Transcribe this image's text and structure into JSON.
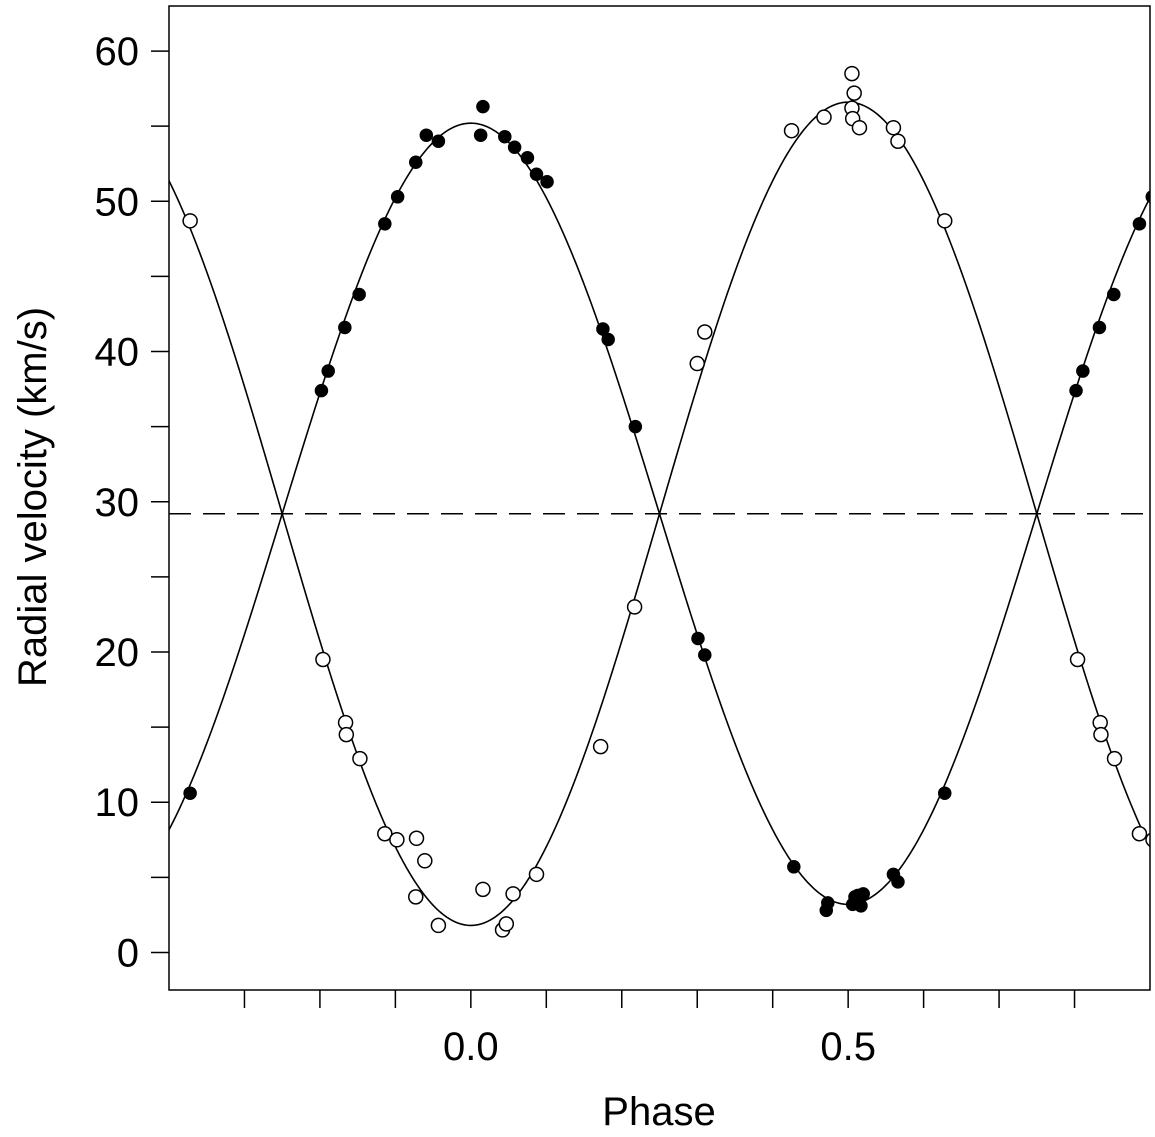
{
  "chart_data": {
    "type": "scatter",
    "title": "",
    "xlabel": "Phase",
    "ylabel": "Radial velocity (km/s)",
    "xlim": [
      -0.4,
      0.9
    ],
    "ylim": [
      -2.5,
      63
    ],
    "x_ticks": [
      -0.3,
      -0.2,
      -0.1,
      0.0,
      0.1,
      0.2,
      0.3,
      0.4,
      0.5,
      0.6,
      0.7,
      0.8
    ],
    "x_tick_labels": [
      {
        "value": 0.0,
        "label": "0.0"
      },
      {
        "value": 0.5,
        "label": "0.5"
      }
    ],
    "y_ticks": [
      0,
      5,
      10,
      15,
      20,
      25,
      30,
      35,
      40,
      45,
      50,
      55,
      60
    ],
    "y_tick_labels": [
      {
        "value": 0,
        "label": "0"
      },
      {
        "value": 10,
        "label": "10"
      },
      {
        "value": 20,
        "label": "20"
      },
      {
        "value": 30,
        "label": "30"
      },
      {
        "value": 40,
        "label": "40"
      },
      {
        "value": 50,
        "label": "50"
      },
      {
        "value": 60,
        "label": "60"
      }
    ],
    "grid": false,
    "legend": "none",
    "systemic_velocity": 29.2,
    "series": [
      {
        "marker": "filled-circle",
        "color": "#000000",
        "curve": {
          "mean": 29.2,
          "amplitude": 26.0,
          "peak_phase": 0.0
        },
        "x": [
          -0.372,
          -0.198,
          -0.189,
          -0.167,
          -0.148,
          -0.114,
          -0.097,
          -0.073,
          -0.059,
          -0.043,
          0.013,
          0.016,
          0.045,
          0.058,
          0.075,
          0.087,
          0.101,
          0.175,
          0.182,
          0.218,
          0.301,
          0.31,
          0.428,
          0.471,
          0.473,
          0.506,
          0.509,
          0.513,
          0.517,
          0.52,
          0.56,
          0.566,
          0.628,
          0.802,
          0.811,
          0.833,
          0.852,
          0.886,
          0.903
        ],
        "y": [
          10.6,
          37.4,
          38.7,
          41.6,
          43.8,
          48.5,
          50.3,
          52.6,
          54.4,
          54.0,
          54.4,
          56.3,
          54.3,
          53.6,
          52.9,
          51.8,
          51.3,
          41.5,
          40.8,
          35.0,
          20.9,
          19.8,
          5.7,
          2.8,
          3.3,
          3.2,
          3.7,
          3.8,
          3.1,
          3.9,
          5.2,
          4.7,
          10.6,
          37.4,
          38.7,
          41.6,
          43.8,
          48.5,
          50.3
        ]
      },
      {
        "marker": "open-circle",
        "color": "#000000",
        "curve": {
          "mean": 29.2,
          "amplitude": 27.4,
          "peak_phase": 0.5
        },
        "x": [
          -0.372,
          -0.196,
          -0.166,
          -0.165,
          -0.147,
          -0.114,
          -0.098,
          -0.072,
          -0.073,
          -0.061,
          -0.043,
          0.016,
          0.042,
          0.047,
          0.056,
          0.087,
          0.172,
          0.217,
          0.3,
          0.31,
          0.425,
          0.468,
          0.505,
          0.506,
          0.508,
          0.505,
          0.515,
          0.56,
          0.566,
          0.628,
          0.804,
          0.834,
          0.835,
          0.853,
          0.886,
          0.904
        ],
        "y": [
          48.7,
          19.5,
          15.3,
          14.5,
          12.9,
          7.9,
          7.5,
          7.6,
          3.7,
          6.1,
          1.8,
          4.2,
          1.5,
          1.9,
          3.9,
          5.2,
          13.7,
          23.0,
          39.2,
          41.3,
          54.7,
          55.6,
          56.2,
          55.5,
          57.2,
          58.5,
          54.9,
          54.9,
          54.0,
          48.7,
          19.5,
          15.3,
          14.5,
          12.9,
          7.9,
          7.5
        ]
      }
    ]
  }
}
